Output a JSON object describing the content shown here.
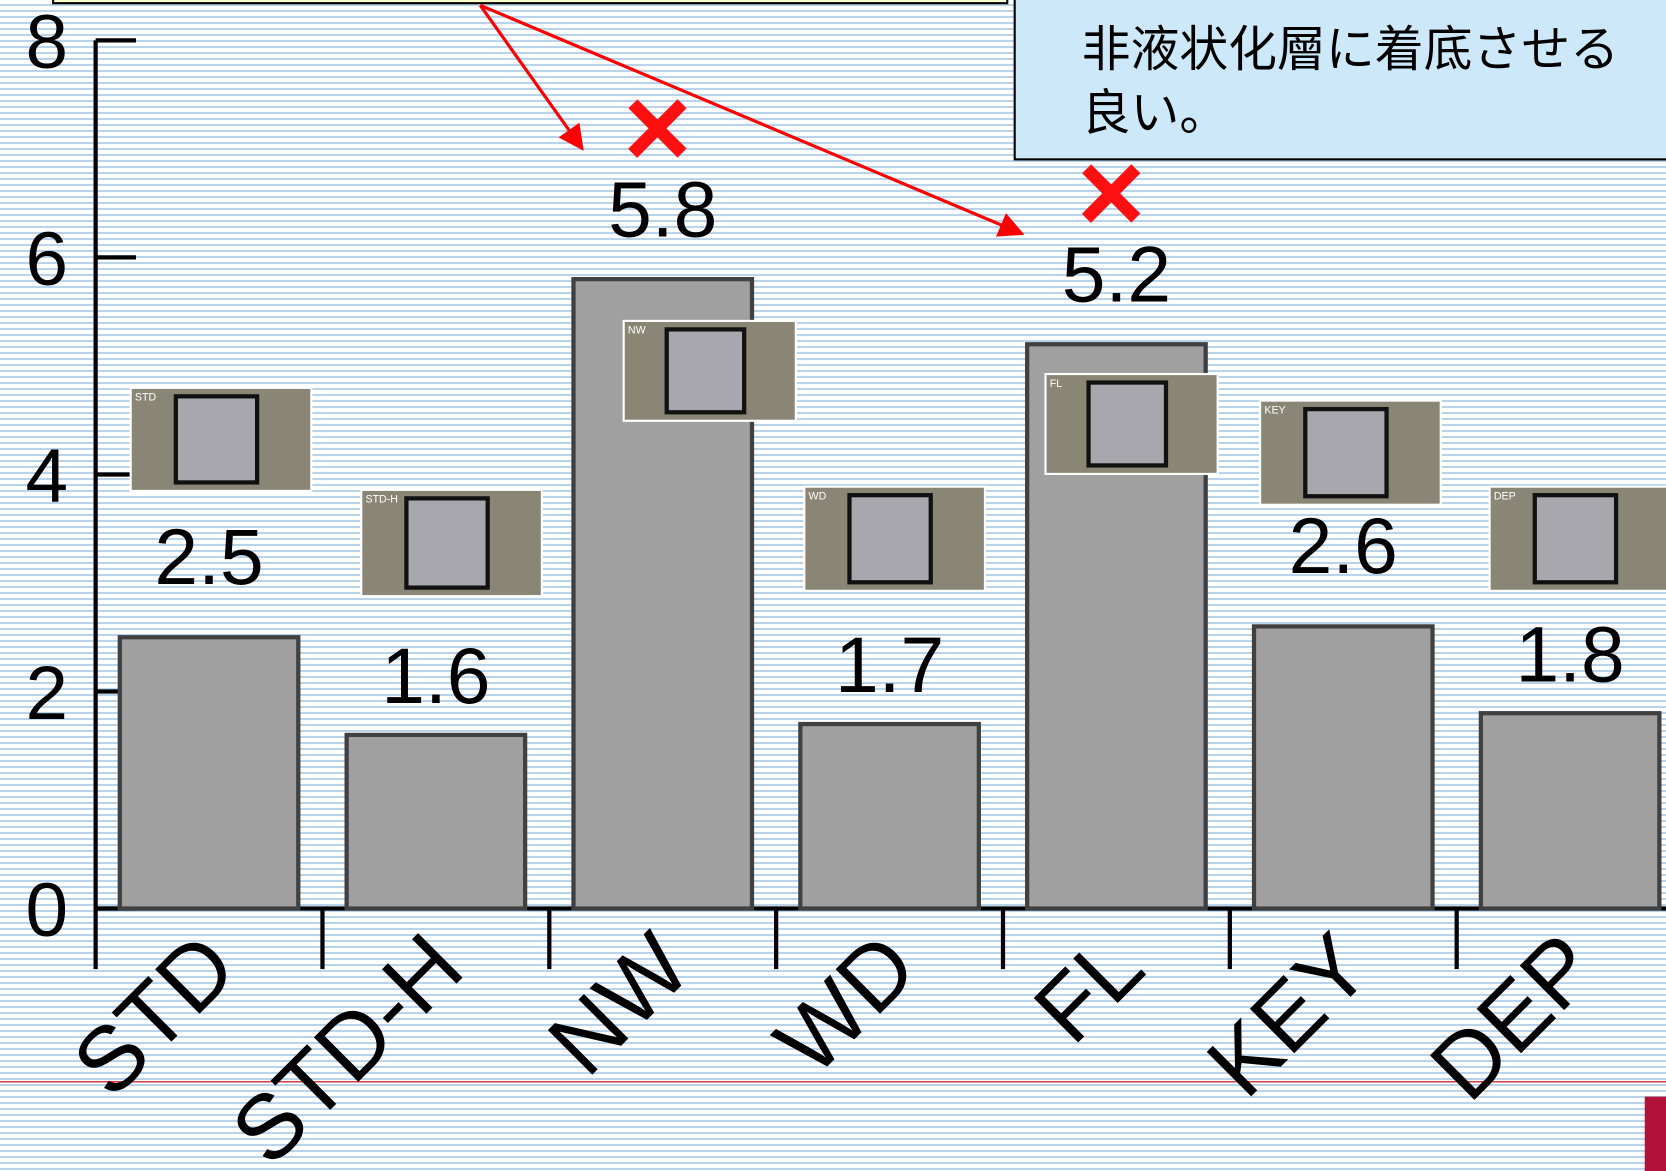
{
  "chart_data": {
    "type": "bar",
    "categories": [
      "STD",
      "STD-H",
      "NW",
      "WD",
      "FL",
      "KEY",
      "DEP"
    ],
    "values": [
      2.5,
      1.6,
      5.8,
      1.7,
      5.2,
      2.6,
      1.8
    ],
    "color": "#a0a0a0",
    "ylim": [
      0,
      8
    ],
    "yticks": [
      0,
      2,
      4,
      6,
      8
    ],
    "annotations": [
      {
        "category": "NW",
        "text": "×"
      },
      {
        "category": "FL",
        "text": "×"
      }
    ],
    "photo_labels": [
      "STD",
      "STD-H",
      "NW",
      "WD",
      "FL",
      "KEY",
      "DEP"
    ]
  },
  "callout": {
    "lines": [
      "非液状化層に着底させる",
      "良い。"
    ]
  }
}
